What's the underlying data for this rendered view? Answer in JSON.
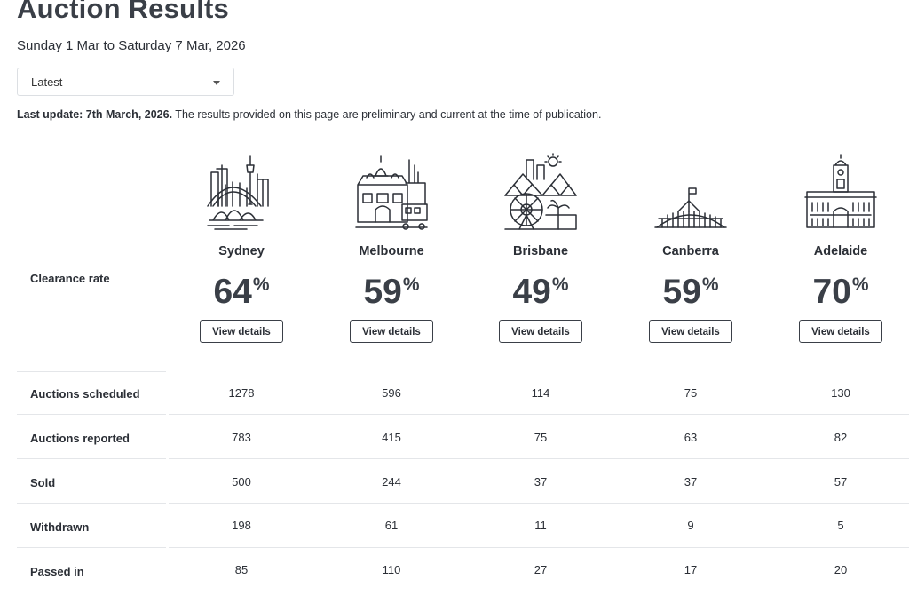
{
  "page": {
    "title": "Auction Results",
    "date_range": "Sunday 1 Mar to Saturday 7 Mar, 2026",
    "period_select": {
      "value": "Latest"
    },
    "last_update_label": "Last update: 7th March, 2026.",
    "last_update_note": " The results provided on this page are preliminary and current at the time of publication."
  },
  "clearance_label": "Clearance rate",
  "percent_sign": "%",
  "view_details_label": "View details",
  "cities": [
    {
      "name": "Sydney",
      "clearance_rate": "64",
      "illustration": "sydney-skyline-icon"
    },
    {
      "name": "Melbourne",
      "clearance_rate": "59",
      "illustration": "melbourne-skyline-icon"
    },
    {
      "name": "Brisbane",
      "clearance_rate": "49",
      "illustration": "brisbane-skyline-icon"
    },
    {
      "name": "Canberra",
      "clearance_rate": "59",
      "illustration": "canberra-parliament-icon"
    },
    {
      "name": "Adelaide",
      "clearance_rate": "70",
      "illustration": "adelaide-town-hall-icon"
    }
  ],
  "rows": [
    {
      "label": "Auctions scheduled",
      "values": [
        "1278",
        "596",
        "114",
        "75",
        "130"
      ]
    },
    {
      "label": "Auctions reported",
      "values": [
        "783",
        "415",
        "75",
        "63",
        "82"
      ]
    },
    {
      "label": "Sold",
      "values": [
        "500",
        "244",
        "37",
        "37",
        "57"
      ]
    },
    {
      "label": "Withdrawn",
      "values": [
        "198",
        "61",
        "11",
        "9",
        "5"
      ]
    },
    {
      "label": "Passed in",
      "values": [
        "85",
        "110",
        "27",
        "17",
        "20"
      ]
    }
  ],
  "colors": {
    "text": "#2b2f36",
    "heading": "#3a3f47",
    "divider": "#e4e6e9"
  }
}
